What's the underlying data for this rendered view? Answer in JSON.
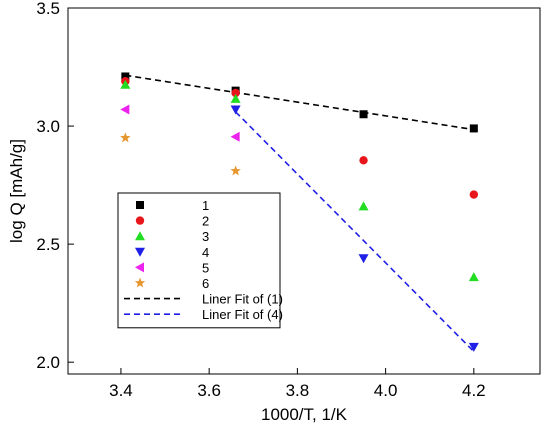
{
  "chart_data": {
    "type": "scatter",
    "title": "",
    "xlabel": "1000/T, 1/K",
    "ylabel": "log Q [mAh/g]",
    "xlim": [
      3.28,
      4.35
    ],
    "ylim": [
      1.95,
      3.5
    ],
    "x_ticks": [
      3.4,
      3.6,
      3.8,
      4.0,
      4.2
    ],
    "x_tick_labels": [
      "3.4",
      "3.6",
      "3.8",
      "4.0",
      "4.2"
    ],
    "y_ticks": [
      2.0,
      2.5,
      3.0,
      3.5
    ],
    "y_tick_labels": [
      "2.0",
      "2.5",
      "3.0",
      "3.5"
    ],
    "grid": false,
    "legend_position": "lower-left",
    "series": [
      {
        "name": "1",
        "marker": "square",
        "color": "#000000",
        "x": [
          3.41,
          3.66,
          3.95,
          4.2
        ],
        "y": [
          3.21,
          3.15,
          3.05,
          2.99
        ]
      },
      {
        "name": "2",
        "marker": "circle",
        "color": "#e8161b",
        "x": [
          3.41,
          3.66,
          3.95,
          4.2
        ],
        "y": [
          3.19,
          3.14,
          2.855,
          2.71
        ]
      },
      {
        "name": "3",
        "marker": "triangle-up",
        "color": "#22dd22",
        "x": [
          3.41,
          3.66,
          3.95,
          4.2
        ],
        "y": [
          3.175,
          3.115,
          2.66,
          2.36
        ]
      },
      {
        "name": "4",
        "marker": "triangle-down",
        "color": "#1f1fe6",
        "x": [
          3.66,
          3.95,
          4.2
        ],
        "y": [
          3.07,
          2.44,
          2.065
        ]
      },
      {
        "name": "5",
        "marker": "triangle-left",
        "color": "#ee22ee",
        "x": [
          3.41,
          3.66
        ],
        "y": [
          3.07,
          2.955
        ]
      },
      {
        "name": "6",
        "marker": "star",
        "color": "#e6962d",
        "x": [
          3.41,
          3.66
        ],
        "y": [
          2.95,
          2.81
        ]
      }
    ],
    "fit_lines": [
      {
        "name": "Liner Fit of (1)",
        "color": "#000000",
        "x": [
          3.41,
          4.2
        ],
        "y": [
          3.215,
          2.985
        ]
      },
      {
        "name": "Liner Fit of (4)",
        "color": "#1f1fe6",
        "x": [
          3.66,
          4.2
        ],
        "y": [
          3.06,
          2.045
        ]
      }
    ]
  }
}
